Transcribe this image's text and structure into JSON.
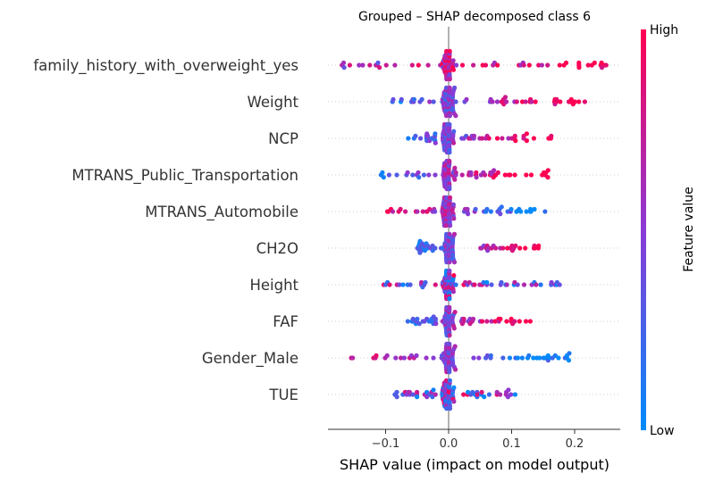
{
  "chart_data": {
    "type": "scatter",
    "subtype": "shap-beeswarm",
    "title": "Grouped – SHAP decomposed class 6",
    "xlabel": "SHAP value (impact on model output)",
    "xlim": [
      -0.19,
      0.275
    ],
    "x_ticks": [
      -0.1,
      0.0,
      0.1,
      0.2
    ],
    "x_tick_labels": [
      "−0.1",
      "0.0",
      "0.1",
      "0.2"
    ],
    "features": [
      {
        "name": "family_history_with_overweight_yes",
        "min": -0.17,
        "max": 0.255,
        "pattern": "high_right_low_left_mixed"
      },
      {
        "name": "Weight",
        "min": -0.09,
        "max": 0.22,
        "pattern": "high_right"
      },
      {
        "name": "NCP",
        "min": -0.065,
        "max": 0.165,
        "pattern": "high_right"
      },
      {
        "name": "MTRANS_Public_Transportation",
        "min": -0.11,
        "max": 0.16,
        "pattern": "high_right"
      },
      {
        "name": "MTRANS_Automobile",
        "min": -0.1,
        "max": 0.155,
        "pattern": "low_right"
      },
      {
        "name": "CH2O",
        "min": -0.05,
        "max": 0.145,
        "pattern": "high_right"
      },
      {
        "name": "Height",
        "min": -0.115,
        "max": 0.18,
        "pattern": "mixed"
      },
      {
        "name": "FAF",
        "min": -0.065,
        "max": 0.135,
        "pattern": "high_right"
      },
      {
        "name": "Gender_Male",
        "min": -0.165,
        "max": 0.195,
        "pattern": "low_right"
      },
      {
        "name": "TUE",
        "min": -0.09,
        "max": 0.11,
        "pattern": "mixed"
      }
    ],
    "colorbar": {
      "label": "Feature value",
      "high_label": "High",
      "low_label": "Low",
      "high_color": "#ff0052",
      "mid_color": "#8b3ad6",
      "low_color": "#008bfb"
    }
  }
}
